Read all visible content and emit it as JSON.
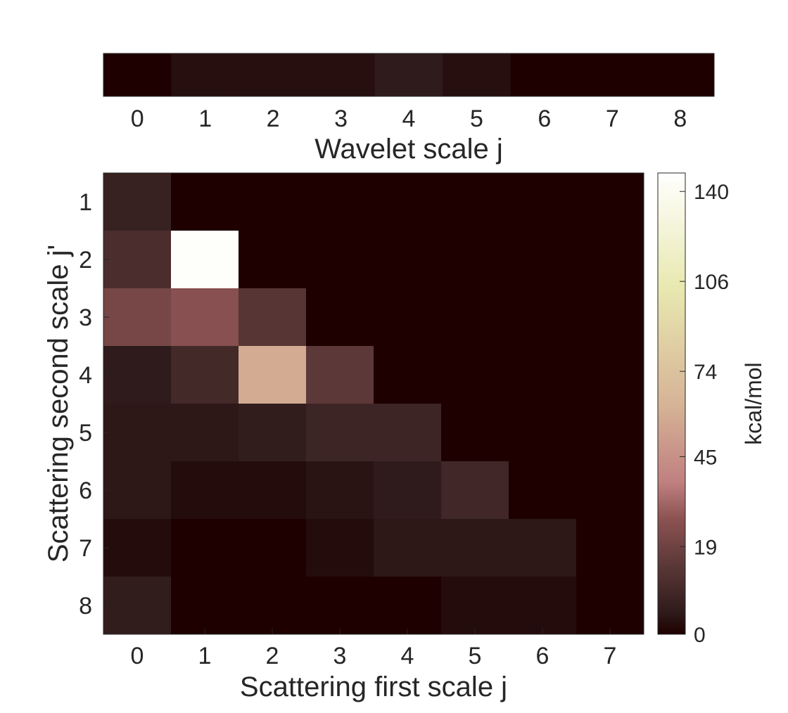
{
  "chart_data": [
    {
      "type": "heatmap",
      "id": "wavelet",
      "title": "",
      "xlabel": "Wavelet scale j",
      "ylabel": "",
      "x": [
        0,
        1,
        2,
        3,
        4,
        5,
        6,
        7,
        8
      ],
      "values": [
        0,
        4,
        4,
        4,
        7,
        4,
        0,
        0,
        0
      ]
    },
    {
      "type": "heatmap",
      "id": "scattering",
      "title": "",
      "xlabel": "Scattering first scale j",
      "ylabel": "Scattering second scale j'",
      "x": [
        0,
        1,
        2,
        3,
        4,
        5,
        6,
        7
      ],
      "y": [
        1,
        2,
        3,
        4,
        5,
        6,
        7,
        8
      ],
      "values": [
        [
          10,
          0,
          0,
          0,
          0,
          0,
          0,
          0
        ],
        [
          16,
          143,
          0,
          0,
          0,
          0,
          0,
          0
        ],
        [
          30,
          35,
          20,
          0,
          0,
          0,
          0,
          0
        ],
        [
          7,
          14,
          68,
          22,
          0,
          0,
          0,
          0
        ],
        [
          6,
          6,
          8,
          12,
          12,
          0,
          0,
          0
        ],
        [
          6,
          3,
          3,
          5,
          7,
          13,
          0,
          0
        ],
        [
          3,
          0,
          0,
          3,
          6,
          6,
          6,
          0
        ],
        [
          8,
          0,
          0,
          0,
          0,
          3,
          3,
          0
        ]
      ],
      "colorbar": {
        "label": "kcal/mol",
        "ticks": [
          0,
          19,
          45,
          74,
          106,
          140
        ],
        "range": [
          0,
          145
        ]
      }
    }
  ]
}
